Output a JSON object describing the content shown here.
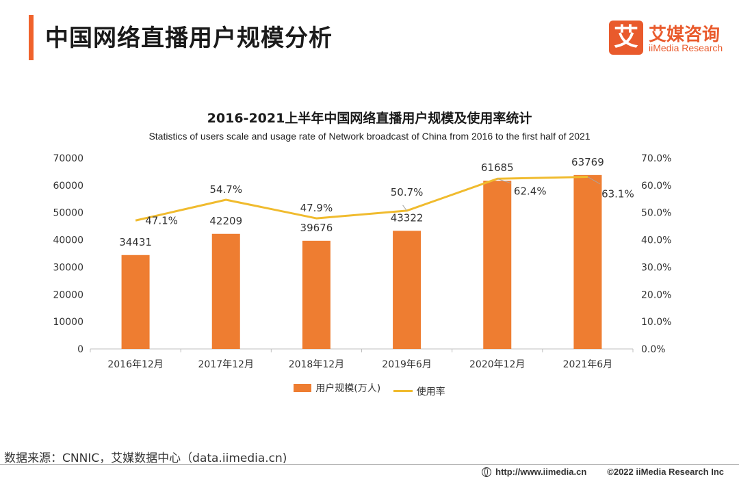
{
  "header": {
    "title": "中国网络直播用户规模分析",
    "logo_mark": "艾",
    "logo_cn": "艾媒咨询",
    "logo_en": "iiMedia Research"
  },
  "chart_data": {
    "type": "bar",
    "title": "2016-2021上半年中国网络直播用户规模及使用率统计",
    "subtitle": "Statistics of users scale and usage rate of Network broadcast of China from 2016 to the first half of 2021",
    "categories": [
      "2016年12月",
      "2017年12月",
      "2018年12月",
      "2019年6月",
      "2020年12月",
      "2021年6月"
    ],
    "series": [
      {
        "name": "用户规模(万人)",
        "type": "bar",
        "axis": "left",
        "color": "#ee7d31",
        "values": [
          34431,
          42209,
          39676,
          43322,
          61685,
          63769
        ],
        "labels": [
          "34431",
          "42209",
          "39676",
          "43322",
          "61685",
          "63769"
        ]
      },
      {
        "name": "使用率",
        "type": "line",
        "axis": "right",
        "color": "#f0bb2e",
        "values": [
          47.1,
          54.7,
          47.9,
          50.7,
          62.4,
          63.1
        ],
        "labels": [
          "47.1%",
          "54.7%",
          "47.9%",
          "50.7%",
          "62.4%",
          "63.1%"
        ]
      }
    ],
    "y_left": {
      "min": 0,
      "max": 70000,
      "ticks": [
        "0",
        "10000",
        "20000",
        "30000",
        "40000",
        "50000",
        "60000",
        "70000"
      ]
    },
    "y_right": {
      "min": 0,
      "max": 70,
      "ticks": [
        "0.0%",
        "10.0%",
        "20.0%",
        "30.0%",
        "40.0%",
        "50.0%",
        "60.0%",
        "70.0%"
      ]
    },
    "grid": false,
    "legend_position": "bottom"
  },
  "footer": {
    "source": "数据来源：CNNIC，艾媒数据中心（data.iimedia.cn)",
    "url": "http://www.iimedia.cn",
    "copyright": "©2022  iiMedia Research  Inc"
  }
}
